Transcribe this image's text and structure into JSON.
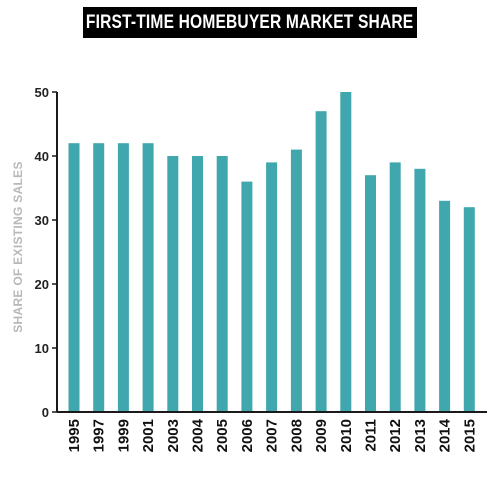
{
  "chart_data": {
    "type": "bar",
    "title": "FIRST-TIME HOMEBUYER MARKET SHARE",
    "xlabel": "",
    "ylabel": "SHARE OF EXISTING SALES",
    "ylim": [
      0,
      50
    ],
    "yticks": [
      0,
      10,
      20,
      30,
      40,
      50
    ],
    "grid": false,
    "categories": [
      "1995",
      "1997",
      "1999",
      "2001",
      "2003",
      "2004",
      "2005",
      "2006",
      "2007",
      "2008",
      "2009",
      "2010",
      "2011",
      "2012",
      "2013",
      "2014",
      "2015"
    ],
    "values": [
      42,
      42,
      42,
      42,
      40,
      40,
      40,
      36,
      39,
      41,
      47,
      50,
      37,
      39,
      38,
      33,
      32
    ],
    "bar_color": "#3fa7ad",
    "axis_color": "#1a1a1a"
  }
}
